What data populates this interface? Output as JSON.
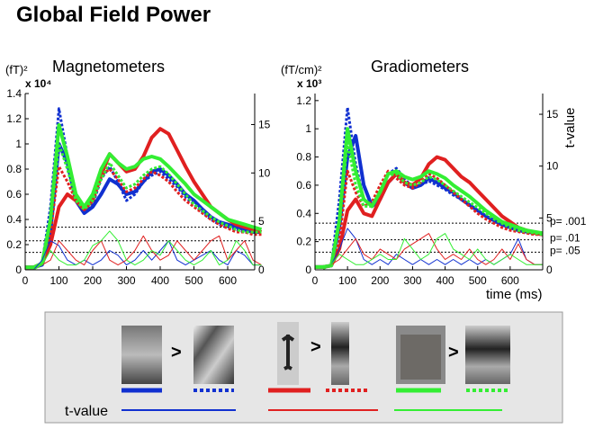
{
  "title": "Global Field Power",
  "legend": {
    "comparison": ">",
    "t_label": "t-value"
  },
  "chart_data": [
    {
      "type": "line",
      "title": "Magnetometers",
      "y_unit": "(fT)²",
      "y_multiplier": "x 10⁴",
      "x": [
        0,
        25,
        50,
        75,
        100,
        125,
        150,
        175,
        200,
        225,
        250,
        275,
        300,
        325,
        350,
        375,
        400,
        425,
        450,
        475,
        500,
        525,
        550,
        575,
        600,
        625,
        650,
        675,
        700
      ],
      "xlim": [
        0,
        680
      ],
      "xticks": [
        0,
        100,
        200,
        300,
        400,
        500,
        600
      ],
      "ylim": [
        0,
        1.4
      ],
      "yticks": [
        0,
        0.2,
        0.4,
        0.6,
        0.8,
        1,
        1.2,
        1.4
      ],
      "y2lim": [
        0,
        18.2
      ],
      "y2ticks": [
        0,
        5,
        10,
        15
      ],
      "thresholds": [
        4.4,
        3.0,
        1.8
      ],
      "series": [
        {
          "color": "#1030d0",
          "style": "solid",
          "values": [
            0.02,
            0.02,
            0.04,
            0.3,
            1.0,
            0.85,
            0.55,
            0.45,
            0.5,
            0.6,
            0.72,
            0.68,
            0.6,
            0.62,
            0.7,
            0.78,
            0.8,
            0.75,
            0.68,
            0.6,
            0.55,
            0.48,
            0.42,
            0.38,
            0.36,
            0.34,
            0.32,
            0.3,
            0.3
          ]
        },
        {
          "color": "#1030d0",
          "style": "dotted",
          "values": [
            0.02,
            0.02,
            0.05,
            0.5,
            1.28,
            0.9,
            0.55,
            0.45,
            0.52,
            0.72,
            0.82,
            0.7,
            0.55,
            0.6,
            0.7,
            0.75,
            0.78,
            0.72,
            0.66,
            0.58,
            0.52,
            0.46,
            0.4,
            0.36,
            0.34,
            0.32,
            0.3,
            0.3,
            0.3
          ]
        },
        {
          "color": "#e02020",
          "style": "solid",
          "values": [
            0.02,
            0.02,
            0.05,
            0.2,
            0.5,
            0.6,
            0.55,
            0.48,
            0.55,
            0.75,
            0.92,
            0.85,
            0.78,
            0.8,
            0.9,
            1.05,
            1.12,
            1.08,
            0.95,
            0.82,
            0.7,
            0.6,
            0.5,
            0.45,
            0.4,
            0.36,
            0.34,
            0.32,
            0.3
          ]
        },
        {
          "color": "#e02020",
          "style": "dotted",
          "values": [
            0.02,
            0.02,
            0.05,
            0.3,
            0.82,
            0.7,
            0.55,
            0.5,
            0.6,
            0.75,
            0.8,
            0.72,
            0.62,
            0.65,
            0.72,
            0.78,
            0.75,
            0.7,
            0.62,
            0.55,
            0.5,
            0.45,
            0.4,
            0.36,
            0.33,
            0.3,
            0.3,
            0.28,
            0.28
          ]
        },
        {
          "color": "#33ee33",
          "style": "solid",
          "values": [
            0.02,
            0.02,
            0.05,
            0.4,
            1.15,
            0.9,
            0.6,
            0.5,
            0.6,
            0.8,
            0.92,
            0.85,
            0.8,
            0.82,
            0.88,
            0.9,
            0.88,
            0.82,
            0.75,
            0.68,
            0.6,
            0.55,
            0.5,
            0.45,
            0.4,
            0.38,
            0.36,
            0.34,
            0.32
          ]
        },
        {
          "color": "#33ee33",
          "style": "dotted",
          "values": [
            0.02,
            0.02,
            0.05,
            0.4,
            1.0,
            0.8,
            0.55,
            0.48,
            0.55,
            0.72,
            0.85,
            0.75,
            0.65,
            0.68,
            0.75,
            0.8,
            0.82,
            0.76,
            0.68,
            0.6,
            0.52,
            0.47,
            0.42,
            0.38,
            0.35,
            0.32,
            0.3,
            0.3,
            0.3
          ]
        },
        {
          "color": "#1030d0",
          "style": "thin",
          "axis": "y2",
          "values": [
            0,
            0,
            1,
            3,
            2.5,
            1,
            0.5,
            1,
            0.5,
            1,
            2,
            1.5,
            0.5,
            1,
            2,
            1,
            2,
            3,
            1,
            0.5,
            1,
            1.5,
            2,
            1,
            0.5,
            2,
            1.5,
            0.5,
            0.5
          ]
        },
        {
          "color": "#e02020",
          "style": "thin",
          "axis": "y2",
          "values": [
            0,
            0,
            0.5,
            1,
            3,
            2,
            1,
            0.5,
            2,
            3,
            1,
            0.5,
            1,
            2,
            3.5,
            2,
            1,
            1.5,
            3,
            2,
            1,
            2,
            3,
            3.5,
            1,
            2,
            3,
            1,
            0.5
          ]
        },
        {
          "color": "#33ee33",
          "style": "thin",
          "axis": "y2",
          "values": [
            0,
            0,
            0.5,
            2,
            1,
            0.5,
            0.5,
            1,
            2.5,
            3,
            4,
            3,
            1,
            0.5,
            1,
            2,
            1.5,
            3,
            2,
            1,
            0.5,
            1,
            2,
            0.5,
            1,
            3,
            2,
            0.5,
            0.5
          ]
        }
      ]
    },
    {
      "type": "line",
      "title": "Gradiometers",
      "y_unit": "(fT/cm)²",
      "y_multiplier": "x 10³",
      "y2_label": "t-value",
      "x_label": "time (ms)",
      "x": [
        0,
        25,
        50,
        75,
        100,
        125,
        150,
        175,
        200,
        225,
        250,
        275,
        300,
        325,
        350,
        375,
        400,
        425,
        450,
        475,
        500,
        525,
        550,
        575,
        600,
        625,
        650,
        675,
        700
      ],
      "xlim": [
        0,
        700
      ],
      "xticks": [
        0,
        100,
        200,
        300,
        400,
        500,
        600
      ],
      "ylim": [
        0,
        1.25
      ],
      "yticks": [
        0,
        0.2,
        0.4,
        0.6,
        0.8,
        1,
        1.2
      ],
      "y2lim": [
        0,
        17
      ],
      "y2ticks": [
        0,
        5,
        10,
        15
      ],
      "thresholds": [
        4.5,
        2.9,
        1.7
      ],
      "threshold_labels": [
        "p= .001",
        "p= .01",
        "p= .05"
      ],
      "series": [
        {
          "color": "#1030d0",
          "style": "solid",
          "values": [
            0.02,
            0.02,
            0.03,
            0.3,
            0.8,
            0.95,
            0.6,
            0.45,
            0.5,
            0.62,
            0.68,
            0.62,
            0.58,
            0.6,
            0.65,
            0.62,
            0.58,
            0.55,
            0.5,
            0.46,
            0.42,
            0.38,
            0.35,
            0.32,
            0.3,
            0.28,
            0.27,
            0.26,
            0.25
          ]
        },
        {
          "color": "#1030d0",
          "style": "dotted",
          "values": [
            0.02,
            0.02,
            0.03,
            0.5,
            1.15,
            0.75,
            0.5,
            0.45,
            0.55,
            0.68,
            0.72,
            0.65,
            0.58,
            0.6,
            0.63,
            0.6,
            0.57,
            0.53,
            0.5,
            0.46,
            0.42,
            0.38,
            0.35,
            0.32,
            0.3,
            0.28,
            0.27,
            0.26,
            0.25
          ]
        },
        {
          "color": "#e02020",
          "style": "solid",
          "values": [
            0.02,
            0.02,
            0.03,
            0.15,
            0.42,
            0.5,
            0.4,
            0.38,
            0.5,
            0.62,
            0.68,
            0.62,
            0.6,
            0.65,
            0.75,
            0.8,
            0.78,
            0.72,
            0.66,
            0.62,
            0.56,
            0.5,
            0.44,
            0.38,
            0.34,
            0.3,
            0.28,
            0.26,
            0.25
          ]
        },
        {
          "color": "#e02020",
          "style": "dotted",
          "values": [
            0.02,
            0.02,
            0.03,
            0.2,
            0.7,
            0.55,
            0.45,
            0.48,
            0.6,
            0.7,
            0.65,
            0.6,
            0.58,
            0.62,
            0.68,
            0.65,
            0.6,
            0.55,
            0.5,
            0.45,
            0.4,
            0.36,
            0.33,
            0.3,
            0.28,
            0.27,
            0.26,
            0.25,
            0.25
          ]
        },
        {
          "color": "#33ee33",
          "style": "solid",
          "values": [
            0.02,
            0.02,
            0.03,
            0.35,
            1.0,
            0.7,
            0.5,
            0.45,
            0.55,
            0.68,
            0.7,
            0.66,
            0.64,
            0.66,
            0.7,
            0.68,
            0.65,
            0.6,
            0.56,
            0.52,
            0.47,
            0.42,
            0.38,
            0.34,
            0.32,
            0.3,
            0.28,
            0.27,
            0.26
          ]
        },
        {
          "color": "#33ee33",
          "style": "dotted",
          "values": [
            0.02,
            0.02,
            0.03,
            0.35,
            0.9,
            0.6,
            0.45,
            0.45,
            0.56,
            0.67,
            0.68,
            0.62,
            0.6,
            0.62,
            0.66,
            0.64,
            0.6,
            0.56,
            0.52,
            0.48,
            0.44,
            0.4,
            0.36,
            0.33,
            0.3,
            0.28,
            0.27,
            0.26,
            0.25
          ]
        },
        {
          "color": "#1030d0",
          "style": "thin",
          "axis": "y2",
          "values": [
            0,
            0,
            0.5,
            2,
            4,
            3,
            1,
            0.5,
            1,
            0.5,
            1.5,
            1,
            0.5,
            1,
            0.5,
            1,
            0.5,
            1,
            0.5,
            1,
            0.5,
            1,
            0.5,
            1,
            1.5,
            3,
            1,
            0.5,
            0.5
          ]
        },
        {
          "color": "#e02020",
          "style": "thin",
          "axis": "y2",
          "values": [
            0,
            0,
            0.5,
            1,
            2,
            3,
            1.5,
            1,
            2,
            1.5,
            1,
            2,
            2.5,
            3,
            3.5,
            2,
            1,
            1.5,
            1,
            2,
            1,
            0.5,
            1,
            2,
            1,
            2.5,
            1,
            0.5,
            0.5
          ]
        },
        {
          "color": "#33ee33",
          "style": "thin",
          "axis": "y2",
          "values": [
            0,
            0,
            0.5,
            1.5,
            1,
            0.5,
            0.5,
            1,
            1.5,
            1,
            1,
            3,
            2,
            1,
            1.5,
            3,
            3.5,
            2,
            1.5,
            1,
            2,
            1,
            0.5,
            1,
            1.5,
            1,
            0.5,
            0.5,
            0.5
          ]
        }
      ]
    }
  ]
}
